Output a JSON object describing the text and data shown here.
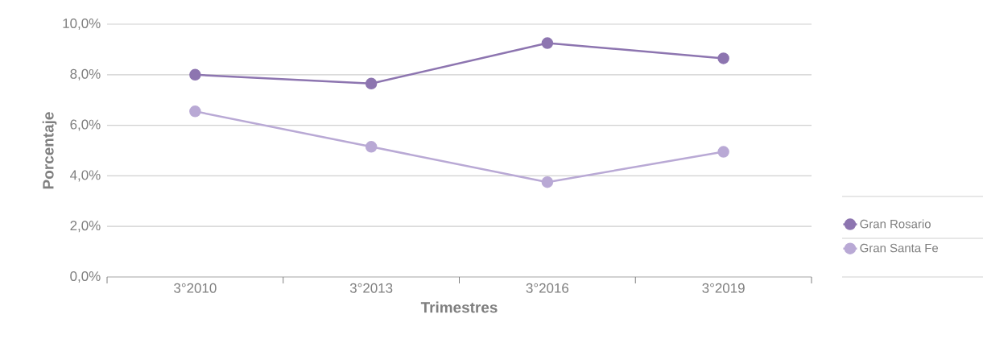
{
  "chart_data": {
    "type": "line",
    "xlabel": "Trimestres",
    "ylabel": "Porcentaje",
    "categories": [
      "3°2010",
      "3°2013",
      "3°2016",
      "3°2019"
    ],
    "series": [
      {
        "name": "Gran Rosario",
        "color": "#8d75b0",
        "values": [
          8.0,
          7.65,
          9.25,
          8.65
        ]
      },
      {
        "name": "Gran Santa Fe",
        "color": "#b9a9d5",
        "values": [
          6.55,
          5.15,
          3.75,
          4.95
        ]
      }
    ],
    "ylim": [
      0,
      10
    ],
    "yticks": [
      {
        "value": 0,
        "label": "0,0%"
      },
      {
        "value": 2,
        "label": "2,0%"
      },
      {
        "value": 4,
        "label": "4,0%"
      },
      {
        "value": 6,
        "label": "6,0%"
      },
      {
        "value": 8,
        "label": "8,0%"
      },
      {
        "value": 10,
        "label": "10,0%"
      }
    ],
    "grid": "y",
    "legend": "right",
    "marker": "circle",
    "line_style": "solid"
  }
}
